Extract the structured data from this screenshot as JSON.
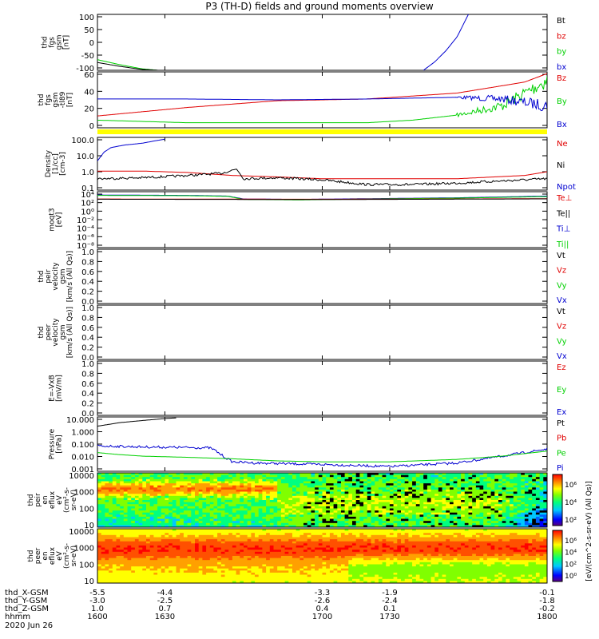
{
  "title": "P3 (TH-D) fields and ground moments overview",
  "date_label": "2020 Jun 26",
  "colors": {
    "black": "#000000",
    "red": "#e00000",
    "green": "#00d000",
    "blue": "#0000d0",
    "yellow": "#ffff00"
  },
  "chart_data": [
    {
      "type": "line",
      "id": "fgs",
      "ylabel": [
        "thd",
        "fgs",
        "gsm",
        "[nT]"
      ],
      "yticks": [
        "100",
        "50",
        "0",
        "-50",
        "-100"
      ],
      "ylim": [
        -100,
        100
      ],
      "legend": [
        {
          "name": "Bt",
          "color": "black"
        },
        {
          "name": "bz",
          "color": "red"
        },
        {
          "name": "by",
          "color": "green"
        },
        {
          "name": "bx",
          "color": "blue"
        }
      ],
      "series": [
        {
          "name": "by",
          "color": "green",
          "x": [
            1600,
            1610,
            1620,
            1627
          ],
          "y": [
            -62,
            -80,
            -95,
            -100
          ]
        },
        {
          "name": "Bt",
          "color": "black",
          "x": [
            1600,
            1610,
            1620,
            1627
          ],
          "y": [
            -72,
            -86,
            -97,
            -100
          ]
        },
        {
          "name": "bx",
          "color": "blue",
          "x": [
            1745,
            1750,
            1755,
            1760,
            1765
          ],
          "y": [
            -100,
            -70,
            -30,
            20,
            100
          ]
        }
      ]
    },
    {
      "type": "line",
      "id": "fgs2",
      "ylabel": [
        "thd",
        "fgs",
        "gsm",
        "-tl89",
        "[nT]"
      ],
      "yticks": [
        "60",
        "40",
        "20",
        "0"
      ],
      "ylim": [
        -6,
        60
      ],
      "legend": [
        {
          "name": "Bz",
          "color": "red"
        },
        {
          "name": "By",
          "color": "green"
        },
        {
          "name": "Bx",
          "color": "blue"
        }
      ],
      "series": [
        {
          "name": "Bz",
          "color": "red",
          "x": [
            1600,
            1640,
            1680,
            1720,
            1760,
            1790,
            1800
          ],
          "y": [
            8,
            18,
            26,
            28,
            35,
            48,
            58
          ]
        },
        {
          "name": "By",
          "color": "green",
          "x": [
            1600,
            1640,
            1680,
            1720,
            1740,
            1760,
            1780,
            1800
          ],
          "y": [
            3,
            0,
            0,
            0,
            3,
            9,
            20,
            50
          ]
        },
        {
          "name": "Bx",
          "color": "blue",
          "x": [
            1600,
            1640,
            1680,
            1720,
            1760,
            1780,
            1800
          ],
          "y": [
            28,
            28,
            27,
            28,
            30,
            28,
            20
          ]
        }
      ],
      "noise": [
        {
          "series": "Bx",
          "from": 1760,
          "amp": 6
        },
        {
          "series": "By",
          "from": 1760,
          "amp": 8
        }
      ],
      "yellow_band": true
    },
    {
      "type": "line",
      "id": "density",
      "ylabel": [
        "Density",
        "[1/cc]",
        "[cm-3]"
      ],
      "yticks": [
        "100.0",
        "10.0",
        "1.0",
        "0.1"
      ],
      "yscale": "log",
      "ylim": [
        0.05,
        200
      ],
      "legend": [
        {
          "name": "Ne",
          "color": "red"
        },
        {
          "name": "Ni",
          "color": "black"
        },
        {
          "name": "Npot",
          "color": "blue"
        }
      ],
      "series": [
        {
          "name": "Npot",
          "color": "blue",
          "x": [
            1600,
            1603,
            1606,
            1612,
            1620,
            1626,
            1630
          ],
          "y": [
            5,
            20,
            40,
            60,
            80,
            120,
            150
          ]
        },
        {
          "name": "Ne",
          "color": "red",
          "x": [
            1600,
            1620,
            1640,
            1660,
            1680,
            1700,
            1730,
            1760,
            1790,
            1800
          ],
          "y": [
            1.0,
            1.0,
            0.8,
            0.5,
            0.4,
            0.3,
            0.3,
            0.3,
            0.5,
            0.9
          ]
        },
        {
          "name": "Ni",
          "color": "black",
          "x": [
            1600,
            1620,
            1640,
            1655,
            1662,
            1665,
            1680,
            1700,
            1720,
            1740,
            1760,
            1800
          ],
          "y": [
            0.3,
            0.35,
            0.5,
            0.7,
            1.4,
            0.3,
            0.35,
            0.25,
            0.12,
            0.12,
            0.15,
            0.3
          ]
        }
      ]
    },
    {
      "type": "line",
      "id": "temp",
      "ylabel": [
        "moqt3",
        "[eV]"
      ],
      "yticks": [
        "10⁴",
        "10²",
        "10⁰",
        "10⁻²",
        "10⁻⁴",
        "10⁻⁶",
        "10⁻⁸"
      ],
      "yscale": "log",
      "ylim": [
        1e-09,
        100000.0
      ],
      "legend": [
        {
          "name": "Te⊥",
          "color": "red"
        },
        {
          "name": "Te||",
          "color": "black"
        },
        {
          "name": "Ti⊥",
          "color": "blue"
        },
        {
          "name": "Ti||",
          "color": "green"
        }
      ],
      "series": [
        {
          "name": "Ti⊥",
          "color": "blue",
          "x": [
            1600,
            1640,
            1658,
            1665,
            1690,
            1720,
            1760,
            1800
          ],
          "y": [
            15000,
            12000,
            8000,
            1500,
            1200,
            1800,
            3000,
            8000
          ]
        },
        {
          "name": "Ti||",
          "color": "green",
          "x": [
            1600,
            1640,
            1658,
            1665,
            1690,
            1720,
            1760,
            1800
          ],
          "y": [
            12000,
            10000,
            7000,
            1200,
            900,
            1500,
            2500,
            6000
          ]
        },
        {
          "name": "Te⊥",
          "color": "red",
          "x": [
            1600,
            1650,
            1700,
            1750,
            1800
          ],
          "y": [
            1500,
            1400,
            1300,
            1500,
            1800
          ]
        },
        {
          "name": "Te||",
          "color": "black",
          "x": [
            1600,
            1650,
            1700,
            1750,
            1800
          ],
          "y": [
            1300,
            1200,
            1100,
            1300,
            1600
          ]
        }
      ]
    },
    {
      "type": "line",
      "id": "peir_v",
      "ylabel": [
        "thd",
        "peir",
        "velocity",
        "gsm",
        "[km/s (All Qs)]"
      ],
      "yticks": [
        "1.0",
        "0.8",
        "0.6",
        "0.4",
        "0.2",
        "0.0"
      ],
      "ylim": [
        0,
        1
      ],
      "legend": [
        {
          "name": "Vt",
          "color": "black"
        },
        {
          "name": "Vz",
          "color": "red"
        },
        {
          "name": "Vy",
          "color": "green"
        },
        {
          "name": "Vx",
          "color": "blue"
        }
      ],
      "series": []
    },
    {
      "type": "line",
      "id": "peer_v",
      "ylabel": [
        "thd",
        "peer",
        "velocity",
        "gsm",
        "[km/s (All Qs)]"
      ],
      "yticks": [
        "1.0",
        "0.8",
        "0.6",
        "0.4",
        "0.2",
        "0.0"
      ],
      "ylim": [
        0,
        1
      ],
      "legend": [
        {
          "name": "Vt",
          "color": "black"
        },
        {
          "name": "Vz",
          "color": "red"
        },
        {
          "name": "Vy",
          "color": "green"
        },
        {
          "name": "Vx",
          "color": "blue"
        }
      ],
      "series": []
    },
    {
      "type": "line",
      "id": "efield",
      "ylabel": [
        "E=-VxB",
        "[mV/m]"
      ],
      "yticks": [
        "1.0",
        "0.8",
        "0.6",
        "0.4",
        "0.2",
        "0.0"
      ],
      "ylim": [
        0,
        1
      ],
      "legend": [
        {
          "name": "Ez",
          "color": "red"
        },
        {
          "name": "Ey",
          "color": "green"
        },
        {
          "name": "Ex",
          "color": "blue"
        }
      ],
      "series": []
    },
    {
      "type": "line",
      "id": "pressure",
      "ylabel": [
        "Pressure",
        "[nPa]"
      ],
      "yticks": [
        "10.000",
        "1.000",
        "0.100",
        "0.010",
        "0.001"
      ],
      "yscale": "log",
      "ylim": [
        0.0008,
        30
      ],
      "legend": [
        {
          "name": "Pt",
          "color": "black"
        },
        {
          "name": "Pb",
          "color": "red"
        },
        {
          "name": "Pe",
          "color": "green"
        },
        {
          "name": "Pi",
          "color": "blue"
        }
      ],
      "series": [
        {
          "name": "Pt",
          "color": "black",
          "x": [
            1600,
            1610,
            1620,
            1630,
            1635
          ],
          "y": [
            5,
            10,
            15,
            22,
            25
          ]
        },
        {
          "name": "Pi",
          "color": "blue",
          "x": [
            1600,
            1610,
            1620,
            1640,
            1650,
            1652,
            1656,
            1660,
            1670,
            1700,
            1730,
            1760,
            1780,
            1800
          ],
          "y": [
            0.11,
            0.1,
            0.09,
            0.08,
            0.075,
            0.05,
            0.015,
            0.005,
            0.004,
            0.003,
            0.002,
            0.004,
            0.015,
            0.06
          ]
        },
        {
          "name": "Pe",
          "color": "green",
          "x": [
            1600,
            1610,
            1620,
            1640,
            1660,
            1680,
            1700,
            1730,
            1760,
            1780,
            1800
          ],
          "y": [
            0.03,
            0.02,
            0.015,
            0.012,
            0.009,
            0.006,
            0.005,
            0.005,
            0.008,
            0.015,
            0.04
          ]
        }
      ]
    },
    {
      "type": "heatmap",
      "id": "peir_en",
      "ylabel": [
        "thd",
        "peir",
        "en",
        "eflux",
        "eV",
        "(cm²-s-",
        "sr-eV)"
      ],
      "yticks": [
        "10000",
        "1000",
        "100",
        "10"
      ],
      "colorbar_ticks": [
        "10⁶",
        "10⁴",
        "10²"
      ],
      "colorbar_label": "[eV/(cm^2-s-sr-eV) (All Qs)]",
      "zscale": "log",
      "zlim": [
        1,
        10000000.0
      ]
    },
    {
      "type": "heatmap",
      "id": "peer_en",
      "ylabel": [
        "thd",
        "peer",
        "en",
        "eflux",
        "eV",
        "(cm²-s-",
        "sr-eV)"
      ],
      "yticks": [
        "10000",
        "1000",
        "100",
        "10"
      ],
      "colorbar_ticks": [
        "10⁶",
        "10⁴",
        "10²",
        "10⁰"
      ],
      "colorbar_label": "eV/(cm^2-s-sr-eV)",
      "zscale": "log",
      "zlim": [
        1,
        10000000.0
      ]
    }
  ],
  "xaxis": {
    "xlim": [
      1600,
      1800
    ],
    "tick_positions": [
      1600,
      1630,
      1700,
      1730,
      1800
    ],
    "rows": [
      {
        "label": "thd_X-GSM",
        "values": [
          "-5.5",
          "-4.4",
          "-3.3",
          "-1.9",
          "-0.1"
        ]
      },
      {
        "label": "thd_Y-GSM",
        "values": [
          "-3.0",
          "-2.5",
          "-2.6",
          "-2.4",
          "-1.8"
        ]
      },
      {
        "label": "thd_Z-GSM",
        "values": [
          "1.0",
          "0.7",
          "0.4",
          "0.1",
          "-0.2"
        ]
      },
      {
        "label": "hhmm",
        "values": [
          "1600",
          "1630",
          "1700",
          "1730",
          "1800"
        ]
      }
    ]
  }
}
